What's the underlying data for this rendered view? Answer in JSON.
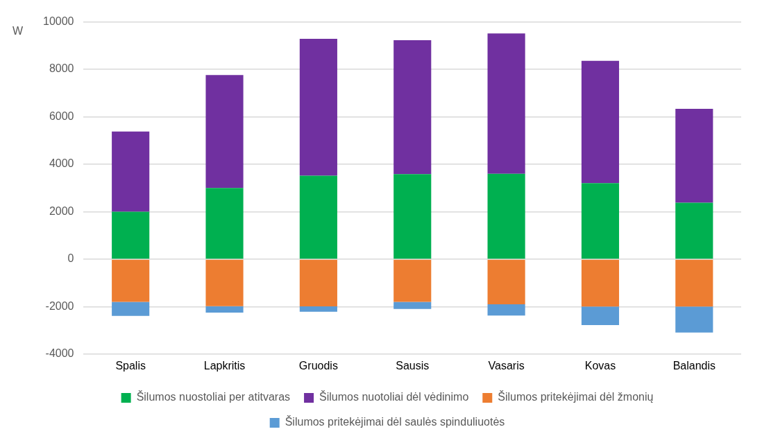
{
  "chart_data": {
    "type": "bar",
    "stacked": true,
    "ylabel": "W",
    "categories": [
      "Spalis",
      "Lapkritis",
      "Gruodis",
      "Sausis",
      "Vasaris",
      "Kovas",
      "Balandis"
    ],
    "series": [
      {
        "name": "Šilumos nuostoliai per atitvaras",
        "color": "#00b050",
        "values": [
          2000,
          3000,
          3520,
          3580,
          3600,
          3200,
          2380
        ]
      },
      {
        "name": "Šilumos nuotoliai dėl vėdinimo",
        "color": "#7030a0",
        "values": [
          3380,
          4760,
          5770,
          5650,
          5910,
          5160,
          3960
        ]
      },
      {
        "name": "Šilumos pritekėjimai dėl žmonių",
        "color": "#ed7d31",
        "values": [
          -1800,
          -1980,
          -1990,
          -1800,
          -1900,
          -2000,
          -2000
        ]
      },
      {
        "name": "Šilumos pritekėjimai dėl saulės spinduliuotės",
        "color": "#5b9bd5",
        "values": [
          -590,
          -270,
          -230,
          -300,
          -480,
          -780,
          -1090
        ]
      }
    ],
    "ylim": [
      -4000,
      10000
    ],
    "yticks": [
      -4000,
      -2000,
      0,
      2000,
      4000,
      6000,
      8000,
      10000
    ],
    "grid": "y",
    "legend": "bottom"
  }
}
